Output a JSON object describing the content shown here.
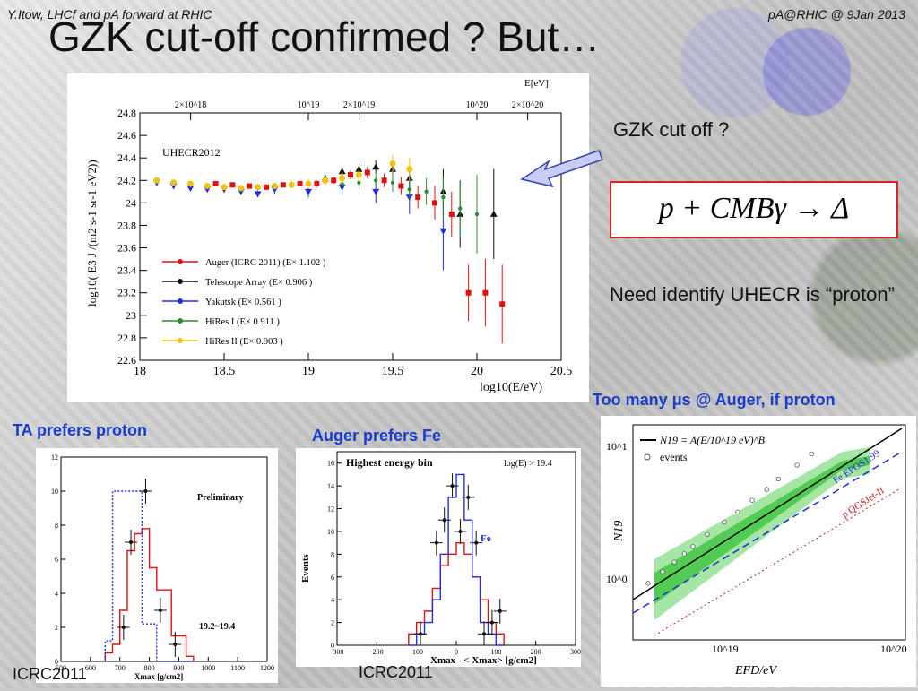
{
  "header": {
    "left": "Y.Itow,  LHCf and pA forward at RHIC",
    "right": "pA@RHIC @ 9Jan 2013"
  },
  "title": "GZK cut-off confirmed ? But…",
  "main_plot": {
    "tag": "UHECR2012",
    "top_axis_title": "E[eV]",
    "top_ticks": [
      "2×10^18",
      "10^19",
      "2×10^19",
      "10^20",
      "2×10^20"
    ],
    "ylabel": "log10( E3 J /(m2 s-1 sr-1 eV2))",
    "xlabel": "log10(E/eV)",
    "legend": [
      "Auger (ICRC 2011) (E× 1.102 )",
      "Telescope Array (E× 0.906 )",
      "Yakutsk  (E× 0.561 )",
      "HiRes I  (E× 0.911 )",
      "HiRes II  (E× 0.903 )"
    ],
    "colors": [
      "#e01010",
      "#111111",
      "#1f2ee0",
      "#2e8b2e",
      "#f4c20d"
    ]
  },
  "chart_data": [
    {
      "type": "scatter",
      "title": "",
      "xlabel": "log10(E/eV)",
      "ylabel": "log10( E3 J /(m2 s-1 sr-1 eV2))",
      "xlim": [
        18,
        20.5
      ],
      "ylim": [
        22.6,
        24.8
      ],
      "xticks": [
        "18",
        "18.5",
        "19",
        "19.5",
        "20",
        "20.5"
      ],
      "yticks": [
        "22.6",
        "22.8",
        "23",
        "23.2",
        "23.4",
        "23.6",
        "23.8",
        "24",
        "24.2",
        "24.4",
        "24.6",
        "24.8"
      ],
      "series": [
        {
          "name": "Auger (ICRC 2011) (E× 1.102 )",
          "color": "#e01010",
          "x": [
            18.45,
            18.55,
            18.65,
            18.75,
            18.85,
            18.95,
            19.05,
            19.15,
            19.25,
            19.35,
            19.45,
            19.55,
            19.65,
            19.75,
            19.85,
            19.95,
            20.05,
            20.15
          ],
          "y": [
            24.17,
            24.16,
            24.15,
            24.14,
            24.16,
            24.17,
            24.17,
            24.2,
            24.25,
            24.27,
            24.2,
            24.15,
            24.05,
            24.0,
            23.9,
            23.2,
            23.2,
            23.1
          ],
          "err": [
            0.02,
            0.02,
            0.02,
            0.02,
            0.02,
            0.02,
            0.03,
            0.03,
            0.04,
            0.05,
            0.06,
            0.08,
            0.1,
            0.15,
            0.2,
            0.25,
            0.3,
            0.35
          ]
        },
        {
          "name": "Telescope Array (E× 0.906 )",
          "color": "#111111",
          "x": [
            19.1,
            19.2,
            19.3,
            19.4,
            19.5,
            19.6,
            19.8,
            19.9,
            20.1
          ],
          "y": [
            24.22,
            24.28,
            24.3,
            24.32,
            24.3,
            24.22,
            24.1,
            23.9,
            23.9
          ],
          "err": [
            0.03,
            0.04,
            0.05,
            0.06,
            0.08,
            0.1,
            0.2,
            0.3,
            0.4
          ]
        },
        {
          "name": "Yakutsk  (E× 0.561 )",
          "color": "#1f2ee0",
          "x": [
            18.1,
            18.2,
            18.3,
            18.4,
            18.5,
            18.6,
            18.7,
            18.8,
            19.0,
            19.2,
            19.4,
            19.6,
            19.8
          ],
          "y": [
            24.18,
            24.15,
            24.13,
            24.12,
            24.12,
            24.1,
            24.08,
            24.12,
            24.1,
            24.14,
            24.1,
            24.05,
            23.75
          ],
          "err": [
            0.02,
            0.02,
            0.02,
            0.02,
            0.03,
            0.03,
            0.03,
            0.04,
            0.05,
            0.06,
            0.1,
            0.15,
            0.35
          ]
        },
        {
          "name": "HiRes I  (E× 0.911 )",
          "color": "#2e8b2e",
          "x": [
            19.2,
            19.3,
            19.4,
            19.5,
            19.6,
            19.7,
            19.8,
            19.9,
            20.0
          ],
          "y": [
            24.17,
            24.18,
            24.2,
            24.18,
            24.12,
            24.1,
            24.05,
            23.95,
            23.9
          ],
          "err": [
            0.05,
            0.06,
            0.07,
            0.08,
            0.1,
            0.12,
            0.18,
            0.25,
            0.35
          ]
        },
        {
          "name": "HiRes II  (E× 0.903 )",
          "color": "#f4c20d",
          "x": [
            18.1,
            18.2,
            18.3,
            18.4,
            18.5,
            18.6,
            18.7,
            18.8,
            18.9,
            19.0,
            19.1,
            19.2,
            19.3,
            19.5,
            19.6
          ],
          "y": [
            24.2,
            24.18,
            24.17,
            24.15,
            24.14,
            24.13,
            24.14,
            24.15,
            24.16,
            24.17,
            24.2,
            24.22,
            24.25,
            24.35,
            24.3
          ],
          "err": [
            0.02,
            0.02,
            0.02,
            0.02,
            0.02,
            0.02,
            0.03,
            0.03,
            0.03,
            0.04,
            0.04,
            0.05,
            0.06,
            0.08,
            0.1
          ]
        }
      ]
    },
    {
      "type": "bar",
      "title": "",
      "annotations": [
        "Preliminary",
        "19.2~19.4"
      ],
      "xlabel": "Xmax [g/cm2]",
      "ylabel": "",
      "xlim": [
        500,
        1200
      ],
      "ylim": [
        0,
        12
      ],
      "xticks": [
        "500",
        "600",
        "700",
        "800",
        "900",
        "1000",
        "1100",
        "1200"
      ],
      "yticks": [
        "0",
        "2",
        "4",
        "6",
        "8",
        "10",
        "12"
      ],
      "x_bin_starts": [
        650,
        675,
        700,
        725,
        750,
        775,
        800,
        825,
        850,
        875,
        900,
        925
      ],
      "series": [
        {
          "name": "",
          "color": "#e01010",
          "values": [
            0.5,
            1.0,
            3.0,
            6.5,
            7.5,
            7.8,
            5.5,
            4.2,
            4.2,
            1.5,
            1.5,
            0.3
          ]
        },
        {
          "name": "",
          "color": "#1f2ee0",
          "values": [
            1.2,
            10.0,
            10.0,
            10.0,
            10.0,
            2.2,
            2.2,
            0.0,
            0.0,
            0.0,
            0.0,
            0.0
          ]
        },
        {
          "name": "",
          "color": "#111111",
          "values": [
            null,
            null,
            2,
            7,
            null,
            10,
            null,
            3,
            null,
            1,
            null,
            null
          ]
        }
      ]
    },
    {
      "type": "bar",
      "title": "",
      "annotations": [
        "Highest energy bin",
        "log(E) > 19.4",
        "Fe"
      ],
      "xlabel": "Xmax - < Xmax> [g/cm2]",
      "ylabel": "Events",
      "xlim": [
        -300,
        300
      ],
      "ylim": [
        0,
        17
      ],
      "xticks": [
        "-300",
        "-200",
        "-100",
        "0",
        "100",
        "200",
        "300"
      ],
      "yticks": [
        "0",
        "2",
        "4",
        "6",
        "8",
        "10",
        "12",
        "14",
        "16"
      ],
      "x_bin_starts": [
        -120,
        -100,
        -80,
        -60,
        -40,
        -20,
        0,
        20,
        40,
        60,
        80,
        100
      ],
      "series": [
        {
          "name": "",
          "color": "#e01010",
          "values": [
            1,
            2,
            3,
            5,
            7,
            8,
            9,
            8,
            6,
            4,
            2,
            1
          ]
        },
        {
          "name": "Fe",
          "color": "#1f2ee0",
          "values": [
            0,
            1,
            2,
            4,
            8,
            13,
            15,
            11,
            6,
            2,
            1,
            0
          ]
        },
        {
          "name": "",
          "color": "#111111",
          "values": [
            null,
            1,
            null,
            9,
            11,
            14,
            10,
            13,
            9,
            1,
            2,
            3
          ]
        }
      ]
    },
    {
      "type": "scatter",
      "title": "",
      "xlabel": "EFD/eV",
      "ylabel": "N19",
      "xscale": "log",
      "yscale": "log",
      "xticks": [
        "10^19",
        "10^20"
      ],
      "yticks": [
        "10^0",
        "10^1"
      ],
      "legend": [
        "N19 = A(E/10^19 eV)^B",
        "events"
      ],
      "curves": [
        "Fe EPOS1.99",
        "p QGSJet-II"
      ],
      "series": [
        {
          "name": "events",
          "color": "#555555",
          "x": [
            4e+18,
            5e+18,
            6e+18,
            7e+18,
            8e+18,
            1e+19,
            1.3e+19,
            1.6e+19,
            2e+19,
            2.5e+19,
            3e+19,
            4e+19,
            5e+19
          ],
          "y": [
            0.9,
            1.1,
            1.3,
            1.5,
            1.7,
            2.1,
            2.6,
            3.1,
            3.8,
            4.6,
            5.5,
            7.0,
            8.5
          ]
        }
      ]
    }
  ],
  "right_text": {
    "gzk_question": "GZK cut off ?",
    "equation": "p + CMBγ → Δ",
    "need": "Need identify UHECR is “proton”",
    "too_many": "Too many μs @ Auger, if proton"
  },
  "bottom": {
    "ta_title": "TA prefers proton",
    "auger_title": "Auger prefers Fe",
    "ta_src": "ICRC2011",
    "auger_src": "ICRC2011"
  }
}
